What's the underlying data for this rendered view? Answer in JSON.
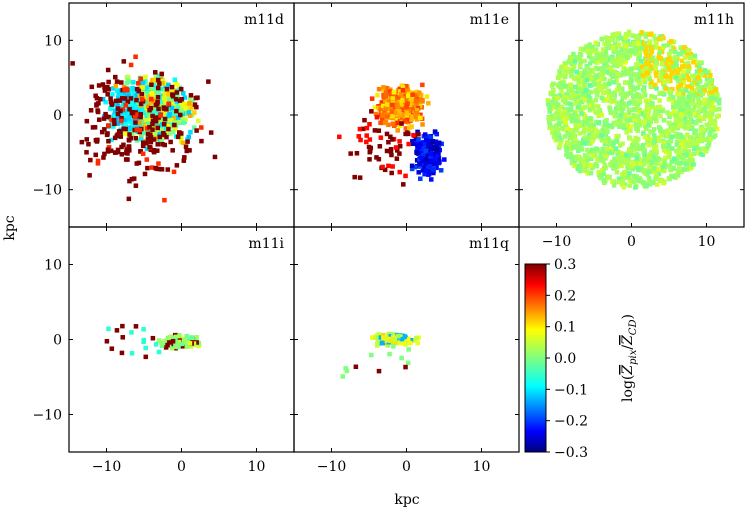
{
  "chart_data": {
    "type": "heatmap",
    "title": "",
    "xlabel": "kpc",
    "ylabel": "kpc",
    "xlim": [
      -15,
      15
    ],
    "ylim": [
      -15,
      15
    ],
    "xticks": [
      -10,
      0,
      10
    ],
    "yticks": [
      -10,
      0,
      10
    ],
    "tick_labels": {
      "neg10": "−10",
      "zero": "0",
      "pos10": "10"
    },
    "colorbar": {
      "label": "log(Z_pix / Z̄_CD)",
      "label_main": "log(",
      "label_z": "Z",
      "label_pix": "pix",
      "label_slash": "/",
      "label_cd": "CD",
      "label_close": ")",
      "range": [
        -0.3,
        0.3
      ],
      "ticks": [
        0.3,
        0.2,
        0.1,
        0.0,
        -0.1,
        -0.2,
        -0.3
      ],
      "tick_labels": [
        "0.3",
        "0.2",
        "0.1",
        "0.0",
        "−0.1",
        "−0.2",
        "−0.3"
      ],
      "colormap": "jet"
    },
    "panels": [
      {
        "name": "m11d",
        "description": "clumpy disk, scattered high-metallicity (red) pixels with cyan core"
      },
      {
        "name": "m11e",
        "description": "compact region, yellow/orange upper half, blue lower-right"
      },
      {
        "name": "m11h",
        "description": "extended patchy disk, mostly green/yellow"
      },
      {
        "name": "m11i",
        "description": "small central clump near origin"
      },
      {
        "name": "m11q",
        "description": "small clump near origin, mostly green"
      }
    ]
  }
}
